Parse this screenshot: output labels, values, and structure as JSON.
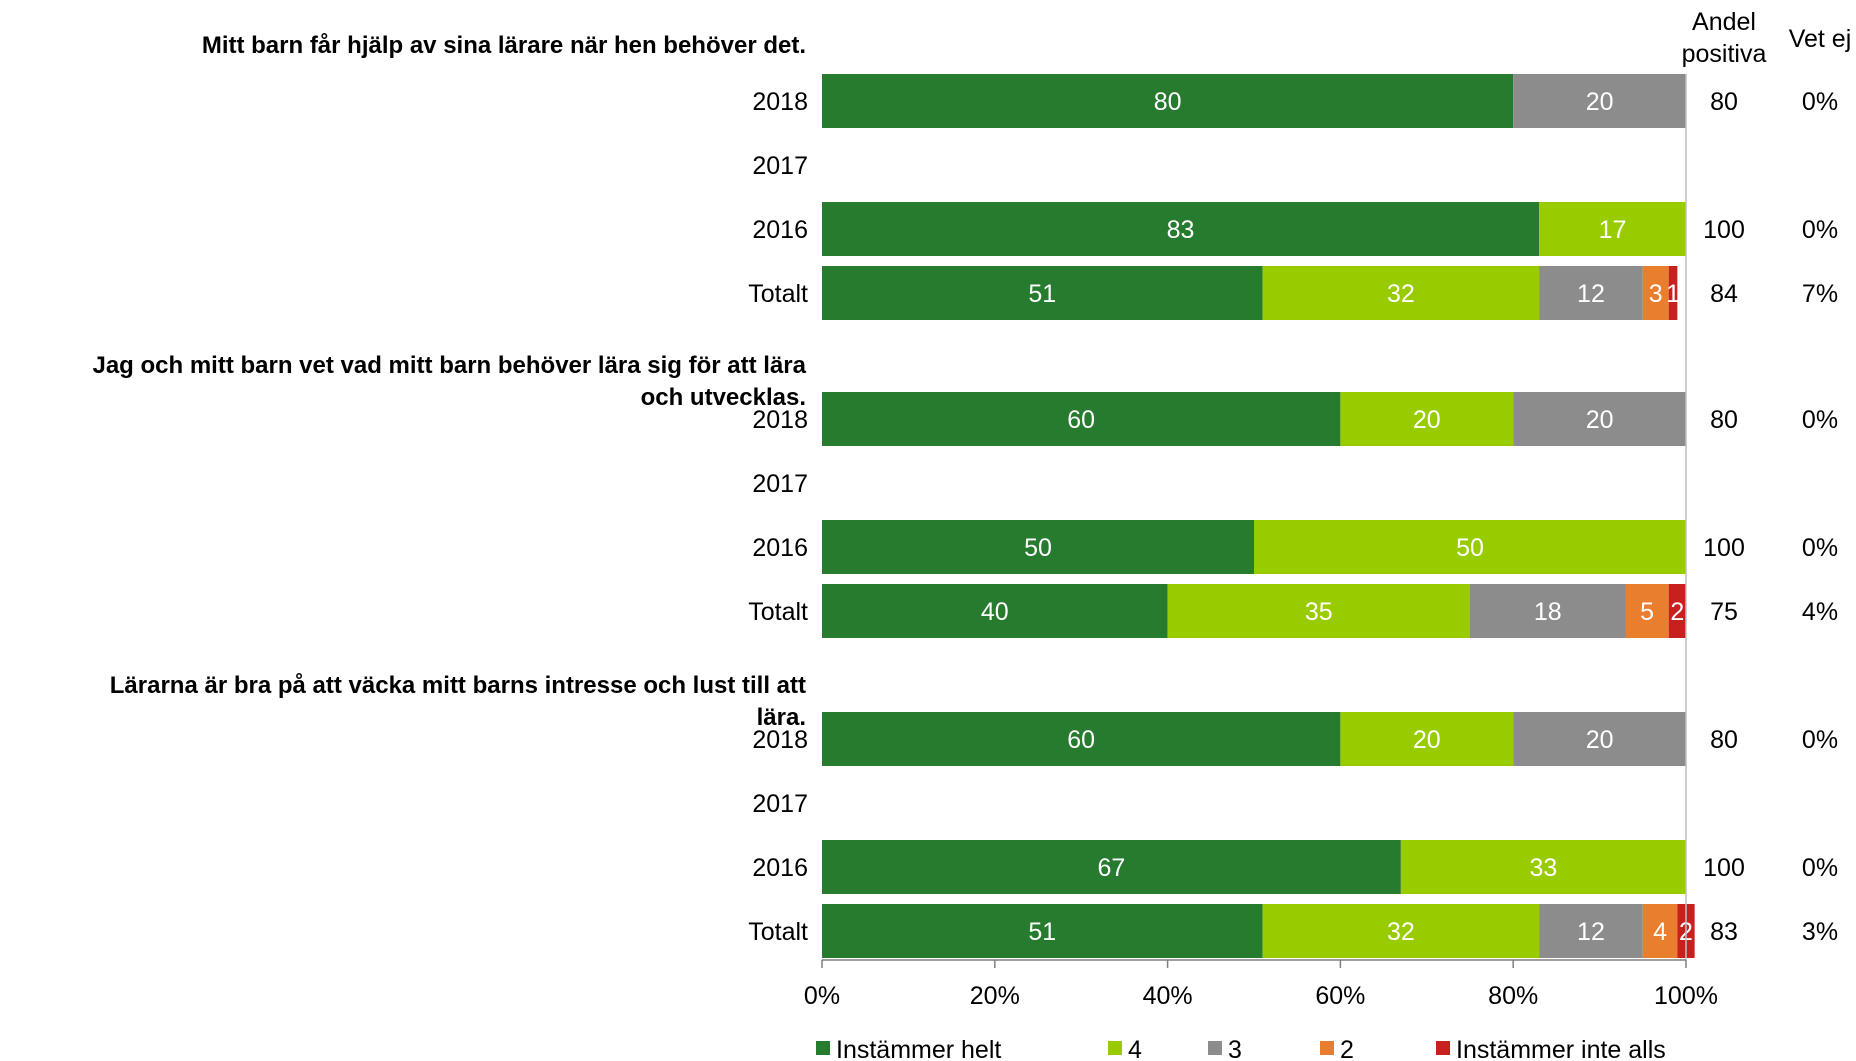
{
  "chart_data": {
    "type": "bar",
    "orientation": "horizontal",
    "stacked": true,
    "percent_stacked": true,
    "columns": {
      "positive_header": "Andel positiva",
      "unknown_header": "Vet ej"
    },
    "xaxis": {
      "ticks": [
        "0%",
        "20%",
        "40%",
        "60%",
        "80%",
        "100%"
      ],
      "range": [
        0,
        100
      ]
    },
    "legend": {
      "placement": "bottom"
    },
    "series": [
      {
        "name": "Instämmer helt",
        "color": "#267B2F"
      },
      {
        "name": "4",
        "color": "#99CC00"
      },
      {
        "name": "3",
        "color": "#8C8C8C"
      },
      {
        "name": "2",
        "color": "#E87E2E"
      },
      {
        "name": "Instämmer inte alls",
        "color": "#C81F1F"
      }
    ],
    "groups": [
      {
        "question": [
          "Mitt barn får hjälp av sina lärare när hen behöver det."
        ],
        "rows": [
          {
            "label": "2018",
            "values": [
              80,
              0,
              20,
              0,
              0
            ],
            "labels": [
              "80",
              "",
              "20",
              "",
              ""
            ],
            "positive": "80",
            "unknown": "0%"
          },
          {
            "label": "2017",
            "values": null,
            "labels": null,
            "positive": "",
            "unknown": ""
          },
          {
            "label": "2016",
            "values": [
              83,
              17,
              0,
              0,
              0
            ],
            "labels": [
              "83",
              "17",
              "",
              "",
              ""
            ],
            "positive": "100",
            "unknown": "0%"
          },
          {
            "label": "Totalt",
            "values": [
              51,
              32,
              12,
              3,
              1
            ],
            "labels": [
              "51",
              "32",
              "12",
              "3",
              "1"
            ],
            "positive": "84",
            "unknown": "7%"
          }
        ]
      },
      {
        "question": [
          "Jag och mitt barn vet vad mitt barn behöver lära sig för att lära",
          "och utvecklas."
        ],
        "rows": [
          {
            "label": "2018",
            "values": [
              60,
              20,
              20,
              0,
              0
            ],
            "labels": [
              "60",
              "20",
              "20",
              "",
              ""
            ],
            "positive": "80",
            "unknown": "0%"
          },
          {
            "label": "2017",
            "values": null,
            "labels": null,
            "positive": "",
            "unknown": ""
          },
          {
            "label": "2016",
            "values": [
              50,
              50,
              0,
              0,
              0
            ],
            "labels": [
              "50",
              "50",
              "",
              "",
              ""
            ],
            "positive": "100",
            "unknown": "0%"
          },
          {
            "label": "Totalt",
            "values": [
              40,
              35,
              18,
              5,
              2
            ],
            "labels": [
              "40",
              "35",
              "18",
              "5",
              "2"
            ],
            "positive": "75",
            "unknown": "4%"
          }
        ]
      },
      {
        "question": [
          "Lärarna är bra på att väcka mitt barns intresse och lust till att",
          "lära."
        ],
        "rows": [
          {
            "label": "2018",
            "values": [
              60,
              20,
              20,
              0,
              0
            ],
            "labels": [
              "60",
              "20",
              "20",
              "",
              ""
            ],
            "positive": "80",
            "unknown": "0%"
          },
          {
            "label": "2017",
            "values": null,
            "labels": null,
            "positive": "",
            "unknown": ""
          },
          {
            "label": "2016",
            "values": [
              67,
              33,
              0,
              0,
              0
            ],
            "labels": [
              "67",
              "33",
              "",
              "",
              ""
            ],
            "positive": "100",
            "unknown": "0%"
          },
          {
            "label": "Totalt",
            "values": [
              51,
              32,
              12,
              4,
              2
            ],
            "labels": [
              "51",
              "32",
              "12",
              "4",
              "2"
            ],
            "positive": "83",
            "unknown": "3%"
          }
        ]
      }
    ]
  }
}
